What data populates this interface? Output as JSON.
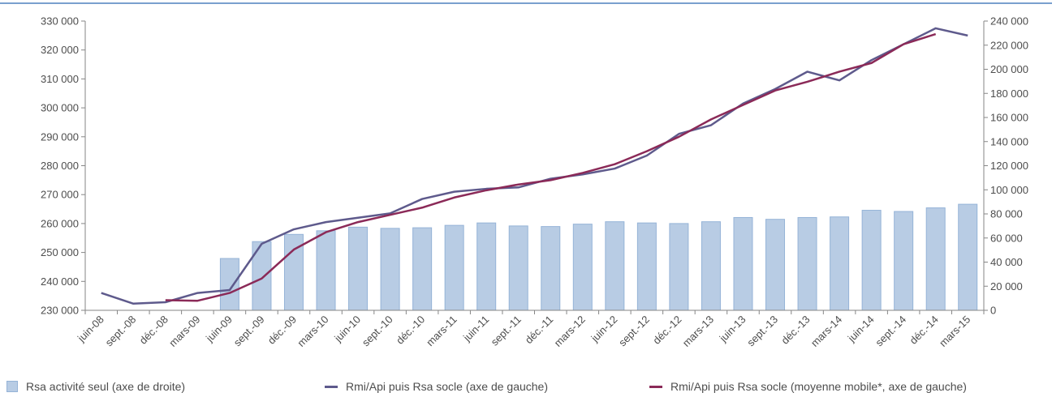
{
  "chart_data": {
    "type": "bar+line",
    "title": "",
    "categories": [
      "juin-08",
      "sept.-08",
      "déc.-08",
      "mars-09",
      "juin-09",
      "sept.-09",
      "déc.-09",
      "mars-10",
      "juin-10",
      "sept.-10",
      "déc.-10",
      "mars-11",
      "juin-11",
      "sept.-11",
      "déc.-11",
      "mars-12",
      "juin-12",
      "sept.-12",
      "déc.-12",
      "mars-13",
      "juin-13",
      "sept.-13",
      "déc.-13",
      "mars-14",
      "juin-14",
      "sept.-14",
      "déc.-14",
      "mars-15"
    ],
    "y_left": {
      "range": [
        230000,
        330000
      ],
      "ticks": [
        "230 000",
        "240 000",
        "250 000",
        "260 000",
        "270 000",
        "280 000",
        "290 000",
        "300 000",
        "310 000",
        "320 000",
        "330 000"
      ]
    },
    "y_right": {
      "range": [
        0,
        240000
      ],
      "ticks": [
        "0",
        "20 000",
        "40 000",
        "60 000",
        "80 000",
        "100 000",
        "120 000",
        "140 000",
        "160 000",
        "180 000",
        "200 000",
        "220 000",
        "240 000"
      ]
    },
    "series": [
      {
        "name": "Rsa activité seul (axe de droite)",
        "type": "bar",
        "axis": "right",
        "color": "#b8cce4",
        "border": "#95b3d7",
        "values": [
          null,
          null,
          null,
          null,
          43000,
          57000,
          63000,
          66000,
          69000,
          68000,
          68500,
          70500,
          72500,
          70000,
          69500,
          71500,
          73500,
          72500,
          72000,
          73500,
          77000,
          75500,
          77000,
          77500,
          83000,
          82000,
          85000,
          88000
        ]
      },
      {
        "name": "Rmi/Api puis Rsa socle (axe de gauche)",
        "type": "line",
        "axis": "left",
        "color": "#5e5a8c",
        "values": [
          236000,
          232300,
          232800,
          236000,
          237000,
          253000,
          258000,
          260500,
          262000,
          263500,
          268500,
          271000,
          272000,
          272500,
          275500,
          277000,
          279000,
          283500,
          291000,
          294000,
          301500,
          306500,
          312500,
          309500,
          316500,
          322000,
          327500,
          325000
        ]
      },
      {
        "name": "Rmi/Api puis Rsa socle (moyenne mobile*, axe de gauche)",
        "type": "line",
        "axis": "left",
        "color": "#8b2a58",
        "values": [
          null,
          null,
          233500,
          233300,
          236000,
          241000,
          251000,
          257000,
          260500,
          263000,
          265500,
          269000,
          271500,
          273500,
          275000,
          277500,
          280500,
          285000,
          290000,
          296000,
          301000,
          306000,
          309000,
          312500,
          315500,
          322000,
          325500,
          null
        ]
      }
    ],
    "legend": "bottom",
    "grid": false
  }
}
